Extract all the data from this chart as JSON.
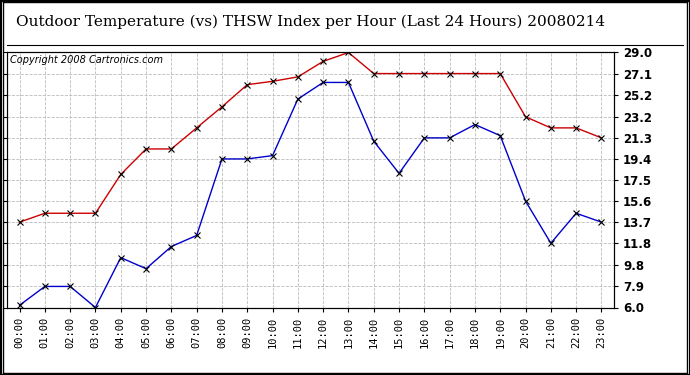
{
  "title": "Outdoor Temperature (vs) THSW Index per Hour (Last 24 Hours) 20080214",
  "copyright": "Copyright 2008 Cartronics.com",
  "hours": [
    "00:00",
    "01:00",
    "02:00",
    "03:00",
    "04:00",
    "05:00",
    "06:00",
    "07:00",
    "08:00",
    "09:00",
    "10:00",
    "11:00",
    "12:00",
    "13:00",
    "14:00",
    "15:00",
    "16:00",
    "17:00",
    "18:00",
    "19:00",
    "20:00",
    "21:00",
    "22:00",
    "23:00"
  ],
  "red_data": [
    13.7,
    14.5,
    14.5,
    14.5,
    18.0,
    20.3,
    20.3,
    22.2,
    24.1,
    26.1,
    26.4,
    26.8,
    28.2,
    29.0,
    27.1,
    27.1,
    27.1,
    27.1,
    27.1,
    27.1,
    23.2,
    22.2,
    22.2,
    21.3
  ],
  "blue_data": [
    6.2,
    7.9,
    7.9,
    6.0,
    10.5,
    9.5,
    11.5,
    12.5,
    19.4,
    19.4,
    19.7,
    24.8,
    26.3,
    26.3,
    21.0,
    18.1,
    21.3,
    21.3,
    22.5,
    21.5,
    15.6,
    11.8,
    14.5,
    13.7
  ],
  "ymin": 6.0,
  "ymax": 29.0,
  "yticks": [
    6.0,
    7.9,
    9.8,
    11.8,
    13.7,
    15.6,
    17.5,
    19.4,
    21.3,
    23.2,
    25.2,
    27.1,
    29.0
  ],
  "red_color": "#cc0000",
  "blue_color": "#0000cc",
  "bg_color": "#ffffff",
  "plot_bg_color": "#ffffff",
  "grid_color": "#bbbbbb",
  "title_fontsize": 11,
  "copyright_fontsize": 7,
  "axis_label_fontsize": 7.5,
  "tick_fontsize": 8.5,
  "marker": "x",
  "markersize": 4
}
